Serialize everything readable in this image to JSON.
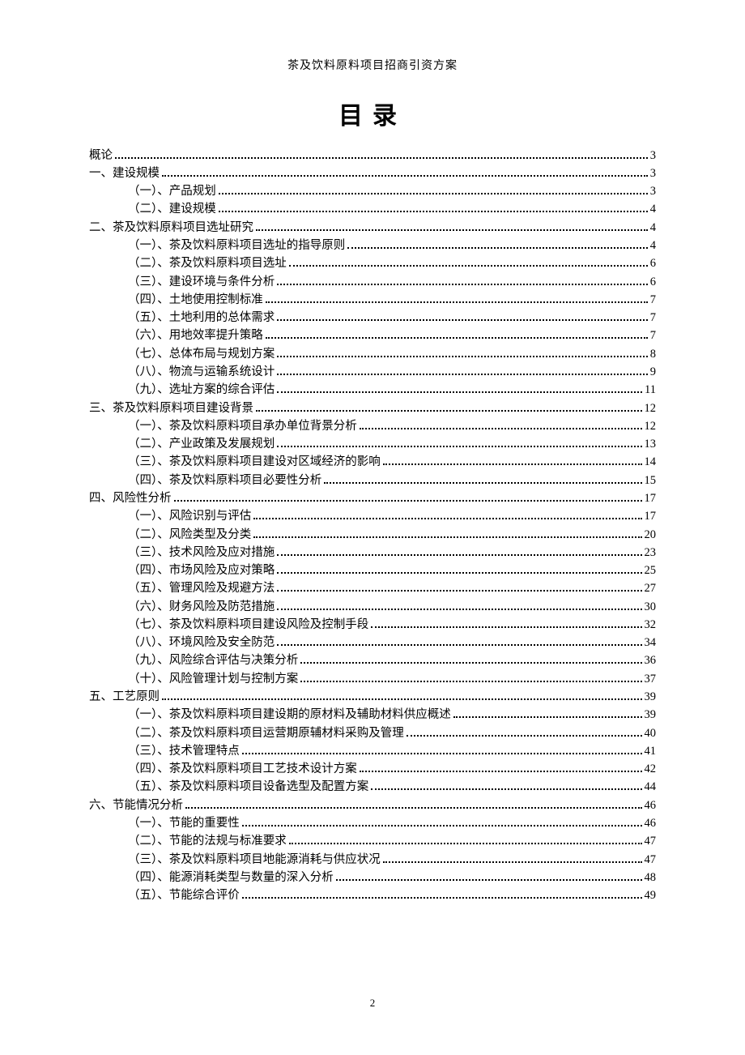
{
  "header": "茶及饮料原料项目招商引资方案",
  "title": "目录",
  "page_number": "2",
  "colors": {
    "text": "#000000",
    "background": "#ffffff"
  },
  "typography": {
    "body_fontsize_pt": 11,
    "title_fontsize_pt": 22,
    "header_fontsize_pt": 10.5
  },
  "toc": [
    {
      "level": 0,
      "label": "概论",
      "page": "3"
    },
    {
      "level": 0,
      "label": "一、建设规模",
      "page": "3"
    },
    {
      "level": 1,
      "label": "（一）、产品规划",
      "page": "3"
    },
    {
      "level": 1,
      "label": "（二）、建设规模",
      "page": "4"
    },
    {
      "level": 0,
      "label": "二、茶及饮料原料项目选址研究",
      "page": "4"
    },
    {
      "level": 1,
      "label": "（一）、茶及饮料原料项目选址的指导原则",
      "page": "4"
    },
    {
      "level": 1,
      "label": "（二）、茶及饮料原料项目选址",
      "page": "6"
    },
    {
      "level": 1,
      "label": "（三）、建设环境与条件分析",
      "page": "6"
    },
    {
      "level": 1,
      "label": "（四）、土地使用控制标准",
      "page": "7"
    },
    {
      "level": 1,
      "label": "（五）、土地利用的总体需求",
      "page": "7"
    },
    {
      "level": 1,
      "label": "（六）、用地效率提升策略",
      "page": "7"
    },
    {
      "level": 1,
      "label": "（七）、总体布局与规划方案",
      "page": "8"
    },
    {
      "level": 1,
      "label": "（八）、物流与运输系统设计",
      "page": "9"
    },
    {
      "level": 1,
      "label": "（九）、选址方案的综合评估",
      "page": "11"
    },
    {
      "level": 0,
      "label": "三、茶及饮料原料项目建设背景",
      "page": "12"
    },
    {
      "level": 1,
      "label": "（一）、茶及饮料原料项目承办单位背景分析",
      "page": "12"
    },
    {
      "level": 1,
      "label": "（二）、产业政策及发展规划",
      "page": "13"
    },
    {
      "level": 1,
      "label": "（三）、茶及饮料原料项目建设对区域经济的影响",
      "page": "14"
    },
    {
      "level": 1,
      "label": "（四）、茶及饮料原料项目必要性分析",
      "page": "15"
    },
    {
      "level": 0,
      "label": "四、风险性分析",
      "page": "17"
    },
    {
      "level": 1,
      "label": "（一）、风险识别与评估",
      "page": "17"
    },
    {
      "level": 1,
      "label": "（二）、风险类型及分类",
      "page": "20"
    },
    {
      "level": 1,
      "label": "（三）、技术风险及应对措施",
      "page": "23"
    },
    {
      "level": 1,
      "label": "（四）、市场风险及应对策略",
      "page": "25"
    },
    {
      "level": 1,
      "label": "（五）、管理风险及规避方法",
      "page": "27"
    },
    {
      "level": 1,
      "label": "（六）、财务风险及防范措施",
      "page": "30"
    },
    {
      "level": 1,
      "label": "（七）、茶及饮料原料项目建设风险及控制手段",
      "page": "32"
    },
    {
      "level": 1,
      "label": "（八）、环境风险及安全防范",
      "page": "34"
    },
    {
      "level": 1,
      "label": "（九）、风险综合评估与决策分析",
      "page": "36"
    },
    {
      "level": 1,
      "label": "（十）、风险管理计划与控制方案",
      "page": "37"
    },
    {
      "level": 0,
      "label": "五、工艺原则",
      "page": "39"
    },
    {
      "level": 1,
      "label": "（一）、茶及饮料原料项目建设期的原材料及辅助材料供应概述",
      "page": "39"
    },
    {
      "level": 1,
      "label": "（二）、茶及饮料原料项目运营期原辅材料采购及管理",
      "page": "40"
    },
    {
      "level": 1,
      "label": "（三）、技术管理特点",
      "page": "41"
    },
    {
      "level": 1,
      "label": "（四）、茶及饮料原料项目工艺技术设计方案",
      "page": "42"
    },
    {
      "level": 1,
      "label": "（五）、茶及饮料原料项目设备选型及配置方案",
      "page": "44"
    },
    {
      "level": 0,
      "label": "六、节能情况分析",
      "page": "46"
    },
    {
      "level": 1,
      "label": "（一）、节能的重要性",
      "page": "46"
    },
    {
      "level": 1,
      "label": "（二）、节能的法规与标准要求",
      "page": "47"
    },
    {
      "level": 1,
      "label": "（三）、茶及饮料原料项目地能源消耗与供应状况",
      "page": "47"
    },
    {
      "level": 1,
      "label": "（四）、能源消耗类型与数量的深入分析",
      "page": "48"
    },
    {
      "level": 1,
      "label": "（五）、节能综合评价",
      "page": "49"
    }
  ]
}
